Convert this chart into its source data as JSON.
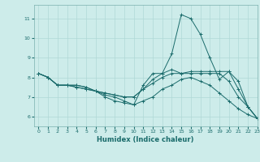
{
  "xlabel": "Humidex (Indice chaleur)",
  "ylabel": "",
  "background_color": "#cdecea",
  "grid_color": "#b0d8d6",
  "line_color": "#1a6b6b",
  "xlim": [
    -0.5,
    23
  ],
  "ylim": [
    5.5,
    11.7
  ],
  "xticks": [
    0,
    1,
    2,
    3,
    4,
    5,
    6,
    7,
    8,
    9,
    10,
    11,
    12,
    13,
    14,
    15,
    16,
    17,
    18,
    19,
    20,
    21,
    22,
    23
  ],
  "yticks": [
    6,
    7,
    8,
    9,
    10,
    11
  ],
  "series": [
    [
      8.2,
      8.0,
      7.6,
      7.6,
      7.6,
      7.5,
      7.3,
      7.0,
      6.8,
      6.7,
      6.6,
      7.6,
      8.2,
      8.2,
      9.2,
      11.2,
      11.0,
      10.2,
      9.0,
      7.9,
      8.3,
      7.8,
      6.5,
      5.9
    ],
    [
      8.2,
      8.0,
      7.6,
      7.6,
      7.6,
      7.5,
      7.3,
      7.2,
      7.1,
      7.0,
      7.0,
      7.4,
      7.9,
      8.2,
      8.4,
      8.2,
      8.3,
      8.3,
      8.3,
      8.3,
      8.3,
      7.4,
      6.5,
      5.9
    ],
    [
      8.2,
      8.0,
      7.6,
      7.6,
      7.5,
      7.4,
      7.3,
      7.2,
      7.1,
      7.0,
      7.0,
      7.4,
      7.7,
      8.0,
      8.2,
      8.2,
      8.2,
      8.2,
      8.2,
      8.2,
      7.8,
      7.0,
      6.5,
      5.9
    ],
    [
      8.2,
      8.0,
      7.6,
      7.6,
      7.5,
      7.4,
      7.3,
      7.1,
      7.0,
      6.8,
      6.6,
      6.8,
      7.0,
      7.4,
      7.6,
      7.9,
      8.0,
      7.8,
      7.6,
      7.2,
      6.8,
      6.4,
      6.1,
      5.9
    ]
  ]
}
